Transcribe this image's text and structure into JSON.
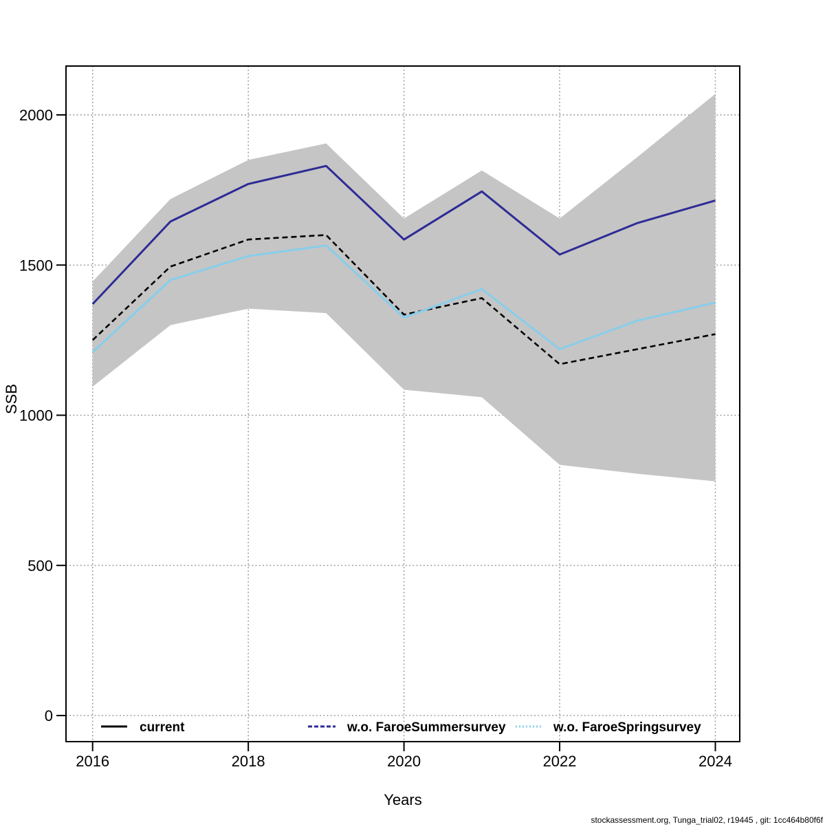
{
  "chart_data": {
    "type": "line",
    "title": "",
    "xlabel": "Years",
    "ylabel": "SSB",
    "x": [
      2016,
      2017,
      2018,
      2019,
      2020,
      2021,
      2022,
      2023,
      2024
    ],
    "xticks": [
      2016,
      2018,
      2020,
      2022,
      2024
    ],
    "yticks": [
      0,
      500,
      1000,
      1500,
      2000
    ],
    "xlim": [
      2015.66,
      2024.31
    ],
    "ylim": [
      0,
      2160
    ],
    "grid": "dotted",
    "legend_position": "bottom-inside-horizontal",
    "series": [
      {
        "name": "current",
        "color": "#000000",
        "plot_style": "dashed",
        "legend_style": "solid",
        "values": [
          1250,
          1495,
          1585,
          1600,
          1335,
          1390,
          1170,
          1220,
          1270
        ]
      },
      {
        "name": "w.o. FaroeSummersurvey",
        "color": "#2E2B96",
        "plot_style": "solid",
        "legend_style": "dashed",
        "values": [
          1370,
          1645,
          1770,
          1830,
          1585,
          1745,
          1535,
          1640,
          1715
        ]
      },
      {
        "name": "w.o. FaroeSpringsurvey",
        "color": "#87CEEB",
        "plot_style": "solid",
        "legend_style": "dotted",
        "values": [
          1210,
          1450,
          1530,
          1565,
          1325,
          1420,
          1220,
          1315,
          1375
        ]
      }
    ],
    "band": {
      "for_series": "current",
      "color": "#C5C5C5",
      "upper": [
        1445,
        1720,
        1850,
        1905,
        1655,
        1815,
        1655,
        1860,
        2070
      ],
      "lower": [
        1095,
        1300,
        1355,
        1340,
        1085,
        1060,
        835,
        805,
        780
      ]
    },
    "colors": {
      "grid": "#8C8C8C",
      "axis": "#000000",
      "background": "#ffffff"
    }
  },
  "footer": {
    "text": "stockassessment.org, Tunga_trial02, r19445 , git: 1cc464b80f6f"
  }
}
